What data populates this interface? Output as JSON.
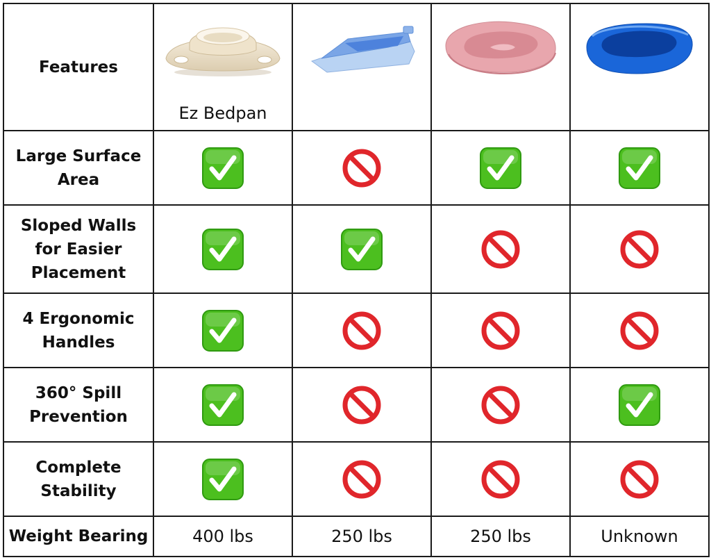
{
  "header": {
    "features_label": "Features",
    "products": [
      {
        "name": "Ez Bedpan",
        "image": "cream-four-handle-bedpan-icon"
      },
      {
        "name": "",
        "image": "blue-fracture-bedpan-icon"
      },
      {
        "name": "",
        "image": "pink-oval-bedpan-icon"
      },
      {
        "name": "",
        "image": "blue-contoured-bedpan-icon"
      }
    ]
  },
  "rows": [
    {
      "feature": "Large Surface Area",
      "lines": [
        "Large Surface",
        "Area"
      ],
      "values": [
        "check",
        "no",
        "check",
        "check"
      ]
    },
    {
      "feature": "Sloped Walls for Easier Placement",
      "lines": [
        "Sloped Walls",
        "for Easier",
        "Placement"
      ],
      "values": [
        "check",
        "check",
        "no",
        "no"
      ]
    },
    {
      "feature": "4 Ergonomic Handles",
      "lines": [
        "4 Ergonomic",
        "Handles"
      ],
      "values": [
        "check",
        "no",
        "no",
        "no"
      ]
    },
    {
      "feature": "360° Spill Prevention",
      "lines": [
        "360° Spill",
        "Prevention"
      ],
      "values": [
        "check",
        "no",
        "no",
        "check"
      ]
    },
    {
      "feature": "Complete Stability",
      "lines": [
        "Complete",
        "Stability"
      ],
      "values": [
        "check",
        "no",
        "no",
        "no"
      ]
    }
  ],
  "weight": {
    "label": "Weight Bearing",
    "values": [
      "400 lbs",
      "250 lbs",
      "250 lbs",
      "Unknown"
    ]
  },
  "colors": {
    "check_green": "#4cbf1f",
    "prohibited_red": "#e0262b",
    "border": "#1a1a1a"
  }
}
